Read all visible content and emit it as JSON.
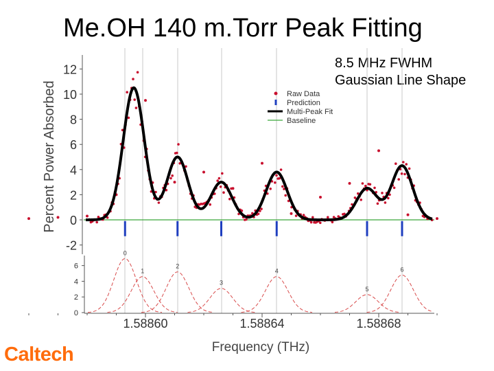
{
  "slide": {
    "title": "Me.OH 140 m.Torr Peak Fitting",
    "annotation_line1": "8.5 MHz FWHM",
    "annotation_line2": "Gaussian Line Shape",
    "logo_text": "Caltech"
  },
  "colors": {
    "raw": "#c8102e",
    "prediction": "#1f3fbf",
    "fit": "#000000",
    "baseline": "#3aa63a",
    "components": "#d84a4a",
    "guide": "#c8c8c8",
    "axis": "#555555",
    "logo": "#ff6c0c"
  },
  "chart_data": [
    {
      "type": "scatter",
      "ylabel": "Percent Power Absorbed",
      "ylim": [
        -2,
        12
      ],
      "yticks": [
        "12",
        "10",
        "8",
        "6",
        "4",
        "2",
        "0",
        "-2"
      ],
      "legend_position": "top-right",
      "grid": false,
      "series": [
        {
          "name": "Raw Data",
          "kind": "points",
          "points": [
            [
              1.58856,
              0.1
            ],
            [
              1.58857,
              0.2
            ],
            [
              1.58858,
              0.3
            ],
            [
              1.58859,
              2.0
            ],
            [
              1.5886,
              9.5
            ],
            [
              1.58861,
              3.0
            ],
            [
              1.58862,
              3.8
            ],
            [
              1.58863,
              2.5
            ],
            [
              1.58864,
              4.5
            ],
            [
              1.58865,
              0.5
            ],
            [
              1.58866,
              1.8
            ],
            [
              1.58867,
              2.9
            ],
            [
              1.58868,
              5.5
            ],
            [
              1.58869,
              0.4
            ],
            [
              1.5887,
              0.1
            ]
          ]
        },
        {
          "name": "Prediction",
          "kind": "sticks",
          "x": [
            1.58859,
            1.5886,
            1.58861,
            1.58863,
            1.58865,
            1.58867,
            1.58868
          ],
          "y": -1.0
        },
        {
          "name": "Multi-Peak Fit",
          "kind": "line",
          "peaks": [
            {
              "center": 1.588596,
              "height": 10.5
            },
            {
              "center": 1.588611,
              "height": 5.0
            },
            {
              "center": 1.588626,
              "height": 3.0
            },
            {
              "center": 1.588645,
              "height": 3.8
            },
            {
              "center": 1.588676,
              "height": 2.5
            },
            {
              "center": 1.588688,
              "height": 4.3
            }
          ],
          "fwhm": 8.5e-06
        },
        {
          "name": "Baseline",
          "kind": "line",
          "y": 0
        }
      ]
    },
    {
      "type": "line",
      "xlabel": "Frequency (THz)",
      "xticks": [
        "1.58860",
        "1.58864",
        "1.58868"
      ],
      "ylim": [
        0,
        7
      ],
      "yticks": [
        "6",
        "4",
        "2",
        "0"
      ],
      "components": [
        {
          "label": "0",
          "center": 1.588593,
          "height": 6.9
        },
        {
          "label": "1",
          "center": 1.588599,
          "height": 4.6
        },
        {
          "label": "2",
          "center": 1.588611,
          "height": 5.2
        },
        {
          "label": "3",
          "center": 1.588626,
          "height": 3.1
        },
        {
          "label": "4",
          "center": 1.588645,
          "height": 4.6
        },
        {
          "label": "5",
          "center": 1.588676,
          "height": 2.3
        },
        {
          "label": "6",
          "center": 1.588688,
          "height": 4.8
        }
      ]
    }
  ]
}
